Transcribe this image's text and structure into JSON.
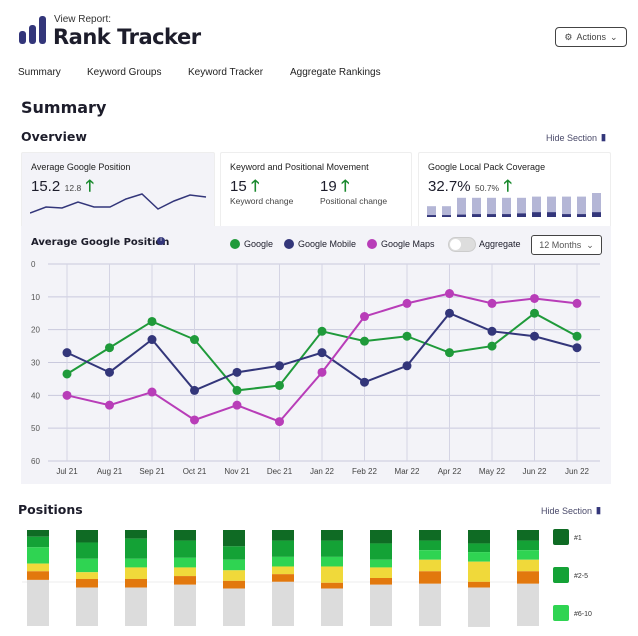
{
  "header": {
    "subtitle": "View Report:",
    "title": "Rank Tracker",
    "actions_label": "Actions"
  },
  "nav": [
    "Summary",
    "Keyword Groups",
    "Keyword Tracker",
    "Aggregate Rankings"
  ],
  "page_title": "Summary",
  "overview": {
    "title": "Overview",
    "hide_label": "Hide Section",
    "avg_card": {
      "title": "Average Google Position",
      "value": "15.2",
      "delta": "12.8",
      "sparkline": [
        44,
        38,
        39,
        33,
        38,
        38,
        30,
        25,
        40,
        32,
        26,
        28
      ]
    },
    "movement_card": {
      "title": "Keyword and Positional Movement",
      "keyword_value": "15",
      "keyword_label": "Keyword change",
      "positional_value": "19",
      "positional_label": "Positional change"
    },
    "local_card": {
      "title": "Google Local Pack Coverage",
      "value": "32.7%",
      "delta": "50.7%",
      "bars": [
        [
          0.45,
          0.08
        ],
        [
          0.45,
          0.08
        ],
        [
          0.8,
          0.1
        ],
        [
          0.8,
          0.12
        ],
        [
          0.8,
          0.12
        ],
        [
          0.8,
          0.12
        ],
        [
          0.8,
          0.15
        ],
        [
          0.85,
          0.2
        ],
        [
          0.85,
          0.2
        ],
        [
          0.85,
          0.12
        ],
        [
          0.85,
          0.12
        ],
        [
          1,
          0.2
        ]
      ]
    }
  },
  "chart_data": {
    "type": "line",
    "title": "Average Google Position",
    "x": [
      "Jul 21",
      "Aug 21",
      "Sep 21",
      "Oct 21",
      "Nov 21",
      "Dec 21",
      "Jan 22",
      "Feb 22",
      "Mar 22",
      "Apr 22",
      "May 22",
      "Jun 22",
      "Jun 22"
    ],
    "ylim": [
      0,
      60
    ],
    "yticks": [
      0,
      10,
      20,
      30,
      40,
      50,
      60
    ],
    "y_inverted": true,
    "grid": true,
    "series": [
      {
        "name": "Google",
        "color": "#1f9a3a",
        "values": [
          33.5,
          25.5,
          17.5,
          23,
          38.5,
          37,
          20.5,
          23.5,
          22,
          27,
          25,
          15,
          22
        ]
      },
      {
        "name": "Google Mobile",
        "color": "#33367a",
        "values": [
          27,
          33,
          23,
          38.5,
          33,
          31,
          27,
          36,
          31,
          15,
          20.5,
          22,
          25.5
        ]
      },
      {
        "name": "Google Maps",
        "color": "#b83db8",
        "values": [
          40,
          43,
          39,
          47.5,
          43,
          48,
          33,
          16,
          12,
          9,
          12,
          10.5,
          12
        ]
      }
    ],
    "aggregate_label": "Aggregate",
    "range_label": "12 Months"
  },
  "positions": {
    "title": "Positions",
    "hide_label": "Hide Section",
    "legend": [
      {
        "label": "#1",
        "color": "#0f6b24"
      },
      {
        "label": "#2-5",
        "color": "#14a236"
      },
      {
        "label": "#6-10",
        "color": "#2fd452"
      }
    ],
    "segment_colors": [
      "#0f6b24",
      "#14a236",
      "#2fd452",
      "#f0d93a",
      "#e2780d",
      "#dcdcdc"
    ],
    "bars": [
      [
        7,
        11,
        17,
        8,
        9,
        48
      ],
      [
        13,
        17,
        14,
        7,
        9,
        40
      ],
      [
        9,
        21,
        9,
        12,
        9,
        40
      ],
      [
        11,
        18,
        10,
        9,
        9,
        43
      ],
      [
        17,
        14,
        11,
        11,
        8,
        39
      ],
      [
        11,
        17,
        10,
        8,
        8,
        46
      ],
      [
        11,
        17,
        10,
        17,
        6,
        39
      ],
      [
        14,
        17,
        8,
        11,
        7,
        43
      ],
      [
        11,
        10,
        10,
        12,
        13,
        44
      ],
      [
        14,
        9,
        10,
        21,
        6,
        41
      ],
      [
        11,
        10,
        10,
        12,
        13,
        44
      ]
    ]
  }
}
